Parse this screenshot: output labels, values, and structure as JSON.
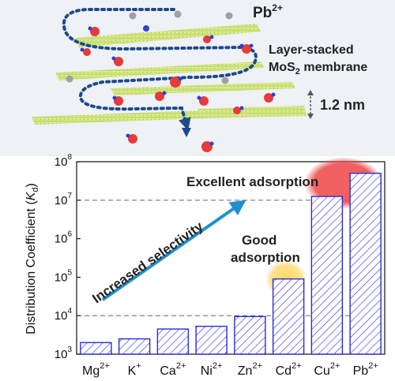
{
  "illustration": {
    "ion_label": "Pb",
    "ion_charge": "2+",
    "membrane_line1": "Layer-stacked",
    "membrane_line2_main": "MoS",
    "membrane_line2_sub": "2",
    "membrane_line2_rest": " membrane",
    "spacing_label": "1.2 nm"
  },
  "chart_data": {
    "type": "bar",
    "categories": [
      "Mg",
      "K",
      "Ca",
      "Ni",
      "Zn",
      "Cd",
      "Cu",
      "Pb"
    ],
    "category_charges": [
      "2+",
      "+",
      "2+",
      "2+",
      "2+",
      "2+",
      "2+",
      "2+"
    ],
    "values": [
      2000,
      2500,
      4500,
      5300,
      9500,
      90000,
      12500000,
      50000000
    ],
    "ylabel_main": "Distribution Coefficient (",
    "ylabel_italic": "K",
    "ylabel_sub": "d",
    "ylabel_close": ")",
    "yscale": "log",
    "ylim": [
      1000,
      100000000
    ],
    "ytick_base": "10",
    "ytick_exponents": [
      "3",
      "4",
      "5",
      "6",
      "7",
      "8"
    ],
    "reference_lines": [
      10000,
      10000000
    ],
    "annotations": {
      "excellent": "Excellent adsorption",
      "good_line1": "Good",
      "good_line2": "adsorption",
      "arrow": "Increased selectivity"
    },
    "colors": {
      "bar_edge": "#2b2bd8",
      "bar_hatch": "#3a3ae0",
      "arrow": "#1f8fd0",
      "highlight_red": "#ee4444",
      "highlight_yellow": "#fbd34d",
      "ref_line": "#777777"
    }
  }
}
